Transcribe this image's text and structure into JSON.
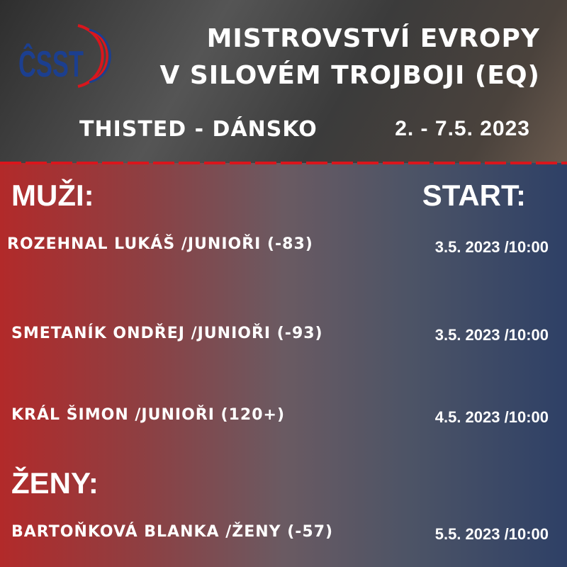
{
  "logo": {
    "text": "ČSST",
    "colors": {
      "blue": "#1c3f8f",
      "red": "#d9161d"
    }
  },
  "header": {
    "title_line1": "MISTROVSTVÍ EVROPY",
    "title_line2": "V SILOVÉM TROJBOJI (EQ)",
    "location": "THISTED - DÁNSKO",
    "dates": "2. - 7.5. 2023"
  },
  "men": {
    "heading": "MUŽI:",
    "start_heading": "START:",
    "athletes": [
      {
        "name": "ROZEHNAL LUKÁŠ /JUNIOŘI (-83)",
        "start": "3.5. 2023 /10:00"
      },
      {
        "name": "SMETANÍK ONDŘEJ /JUNIOŘI (-93)",
        "start": "3.5. 2023 /10:00"
      },
      {
        "name": "KRÁL ŠIMON /JUNIOŘI (120+)",
        "start": "4.5. 2023 /10:00"
      }
    ]
  },
  "women": {
    "heading": "ŽENY:",
    "athletes": [
      {
        "name": "BARTOŇKOVÁ BLANKA /ŽENY (-57)",
        "start": "5.5. 2023 /10:00"
      }
    ]
  }
}
